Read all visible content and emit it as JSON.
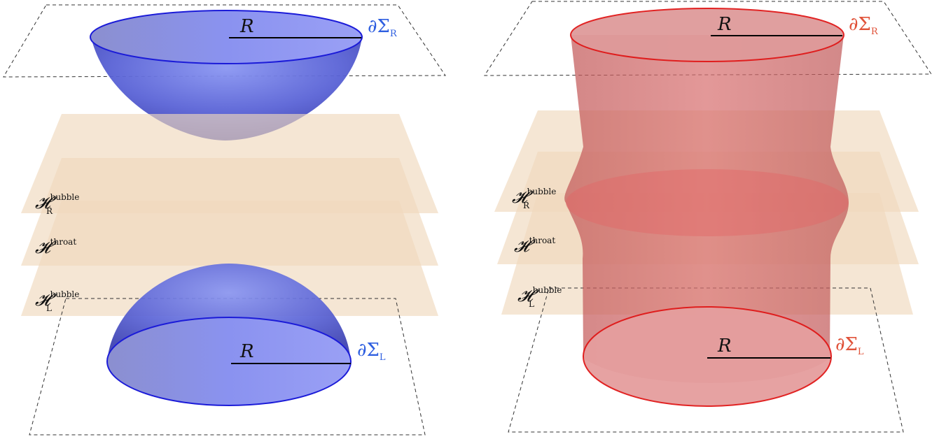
{
  "colors": {
    "plane": "#efd9bd",
    "blue_fill": "#5c68d8",
    "blue_edge": "#1b1bd8",
    "blue_text": "#2f5fe0",
    "red_fill": "#d96a6a",
    "red_edge": "#e01818",
    "red_text": "#e0533a",
    "dash": "#333333",
    "text": "#111111"
  },
  "left_panel": {
    "top_boundary": {
      "base": "∂Σ",
      "sub": "R"
    },
    "bottom_boundary": {
      "base": "∂Σ",
      "sub": "L"
    },
    "top_radius": "R",
    "bottom_radius": "R",
    "planes": [
      {
        "base": "𝓗",
        "sup": "bubble",
        "sub": "R"
      },
      {
        "base": "𝓗",
        "sup": "throat",
        "sub": ""
      },
      {
        "base": "𝓗",
        "sup": "bubble",
        "sub": "L"
      }
    ]
  },
  "right_panel": {
    "top_boundary": {
      "base": "∂Σ",
      "sub": "R"
    },
    "bottom_boundary": {
      "base": "∂Σ",
      "sub": "L"
    },
    "top_radius": "R",
    "bottom_radius": "R",
    "planes": [
      {
        "base": "𝓗",
        "sup": "bubble",
        "sub": "R"
      },
      {
        "base": "𝓗",
        "sup": "throat",
        "sub": ""
      },
      {
        "base": "𝓗",
        "sup": "bubble",
        "sub": "L"
      }
    ]
  }
}
